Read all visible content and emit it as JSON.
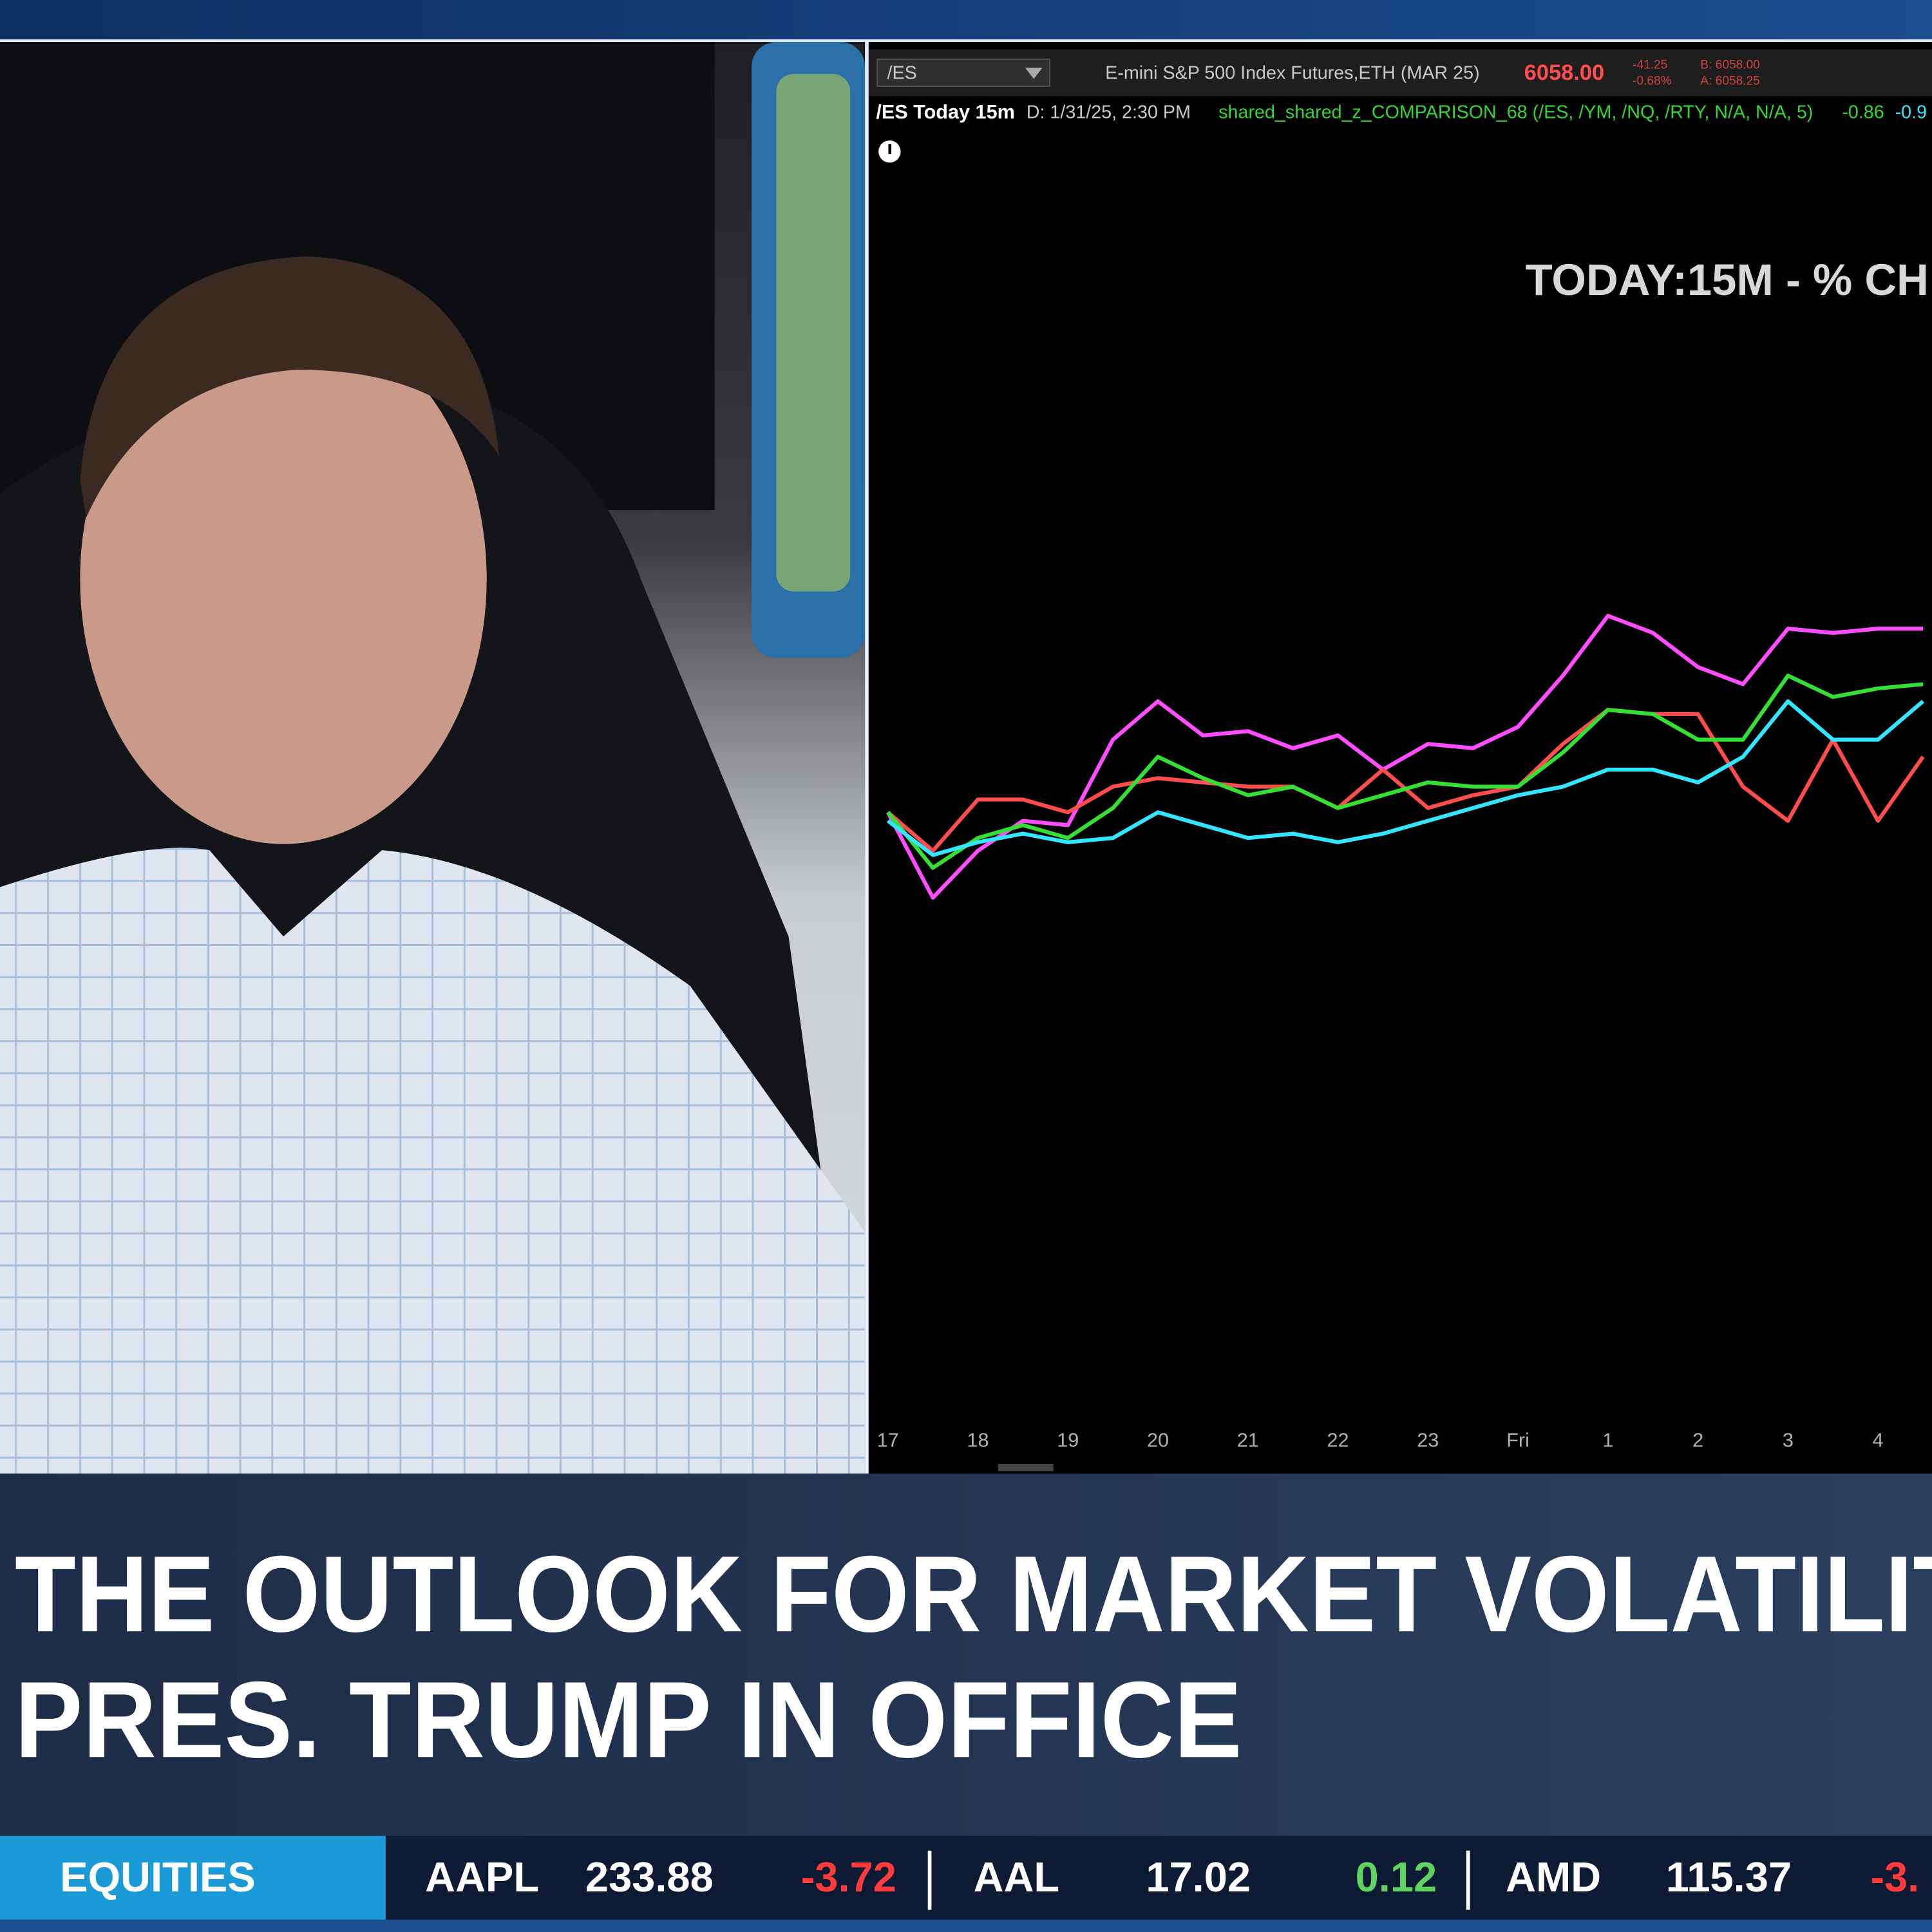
{
  "platform": {
    "symbol": "/ES",
    "description": "E-mini S&P 500 Index Futures,ETH (MAR 25)",
    "price": "6058.00",
    "change": "-41.25",
    "change_percent": "-0.68%",
    "bid": "B: 6058.00",
    "ask": "A: 6058.25",
    "chart_name": "/ES Today 15m",
    "chart_date": "D: 1/31/25, 2:30 PM",
    "study": "shared_shared_z_COMPARISON_68 (/ES, /YM, /NQ, /RTY, N/A, N/A, 5)",
    "study_value_1": "-0.86",
    "study_value_2": "-0.9"
  },
  "chart_data": {
    "type": "line",
    "title": "TODAY:15M - % CH",
    "x": [
      17,
      17.5,
      18,
      18.5,
      19,
      19.5,
      20,
      20.5,
      21,
      21.5,
      22,
      22.5,
      23,
      23.5,
      24,
      24.5,
      25,
      25.5,
      26,
      26.5,
      27,
      27.5,
      28,
      28.5
    ],
    "series": [
      {
        "color": "#ff4dff",
        "values": [
          -0.07,
          -0.27,
          -0.16,
          -0.09,
          -0.1,
          0.1,
          0.19,
          0.11,
          0.12,
          0.08,
          0.11,
          0.03,
          0.09,
          0.08,
          0.13,
          0.25,
          0.39,
          0.35,
          0.27,
          0.23,
          0.36,
          0.35,
          0.36,
          0.36
        ]
      },
      {
        "color": "#ff4d4d",
        "values": [
          -0.07,
          -0.16,
          -0.04,
          -0.04,
          -0.07,
          -0.01,
          0.01,
          0,
          -0.01,
          -0.01,
          -0.06,
          0.03,
          -0.06,
          -0.03,
          -0.01,
          0.09,
          0.17,
          0.16,
          0.16,
          -0.01,
          -0.09,
          0.1,
          -0.09,
          0.06
        ]
      },
      {
        "color": "#33e033",
        "values": [
          -0.07,
          -0.2,
          -0.13,
          -0.1,
          -0.13,
          -0.06,
          0.06,
          0.01,
          -0.03,
          -0.01,
          -0.06,
          -0.03,
          0,
          -0.01,
          -0.01,
          0.07,
          0.17,
          0.16,
          0.1,
          0.1,
          0.25,
          0.2,
          0.22,
          0.23
        ]
      },
      {
        "color": "#33e6ff",
        "values": [
          -0.09,
          -0.17,
          -0.14,
          -0.12,
          -0.14,
          -0.13,
          -0.07,
          -0.1,
          -0.13,
          -0.12,
          -0.14,
          -0.12,
          -0.09,
          -0.06,
          -0.03,
          -0.01,
          0.03,
          0.03,
          0,
          0.06,
          0.19,
          0.1,
          0.1,
          0.19
        ]
      }
    ],
    "xlim": [
      16.8,
      28.6
    ],
    "xticks": [
      17,
      18,
      19,
      20,
      21,
      22,
      23,
      {
        "value": 24,
        "label": "Fri"
      },
      {
        "value": 25,
        "label": "1"
      },
      {
        "value": 26,
        "label": "2"
      },
      {
        "value": 27,
        "label": "3"
      },
      {
        "value": 28,
        "label": "4"
      }
    ],
    "ylim": [
      -1.5,
      1.5
    ]
  },
  "headline": {
    "line_1": "THE OUTLOOK FOR MARKET VOLATILIT",
    "line_2": "PRES. TRUMP IN OFFICE"
  },
  "ticker": {
    "section": "EQUITIES",
    "items": [
      {
        "symbol": "AAPL",
        "price": "233.88",
        "change": "-3.72"
      },
      {
        "symbol": "AAL",
        "price": "17.02",
        "change": "0.12"
      },
      {
        "symbol": "AMD",
        "price": "115.37",
        "change": "-3."
      }
    ]
  }
}
